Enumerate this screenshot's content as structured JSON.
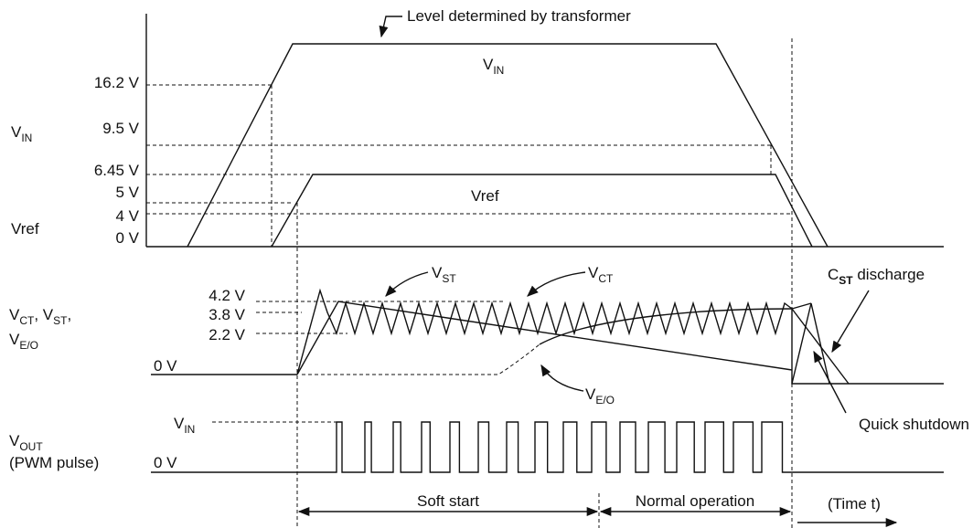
{
  "waveform_labels": {
    "level_note": "Level determined by transformer",
    "vin_trace": [
      "V",
      "IN"
    ],
    "vref_trace": "Vref",
    "vst": [
      "V",
      "ST"
    ],
    "vct": [
      "V",
      "CT"
    ],
    "veo": [
      "V",
      "E/O"
    ],
    "cst_discharge": [
      "C",
      "ST",
      " discharge"
    ],
    "quick_shutdown": "Quick shutdown"
  },
  "axis_labels": {
    "vin": [
      "V",
      "IN"
    ],
    "vref": "Vref",
    "ct_st": [
      "V",
      "CT",
      ", V",
      "ST",
      ","
    ],
    "eo": [
      "V",
      "E/O"
    ],
    "vout": [
      "V",
      "OUT"
    ],
    "pwm": "(PWM pulse)"
  },
  "levels": {
    "top": [
      "16.2 V",
      "9.5 V",
      "6.45 V",
      "5 V",
      "4 V",
      "0 V"
    ],
    "middle": [
      "4.2 V",
      "3.8 V",
      "2.2 V",
      "0 V"
    ],
    "bottom": [
      [
        "V",
        "IN"
      ],
      "0 V"
    ]
  },
  "phases": {
    "soft_start": "Soft start",
    "normal": "Normal operation",
    "time": "(Time t)"
  }
}
